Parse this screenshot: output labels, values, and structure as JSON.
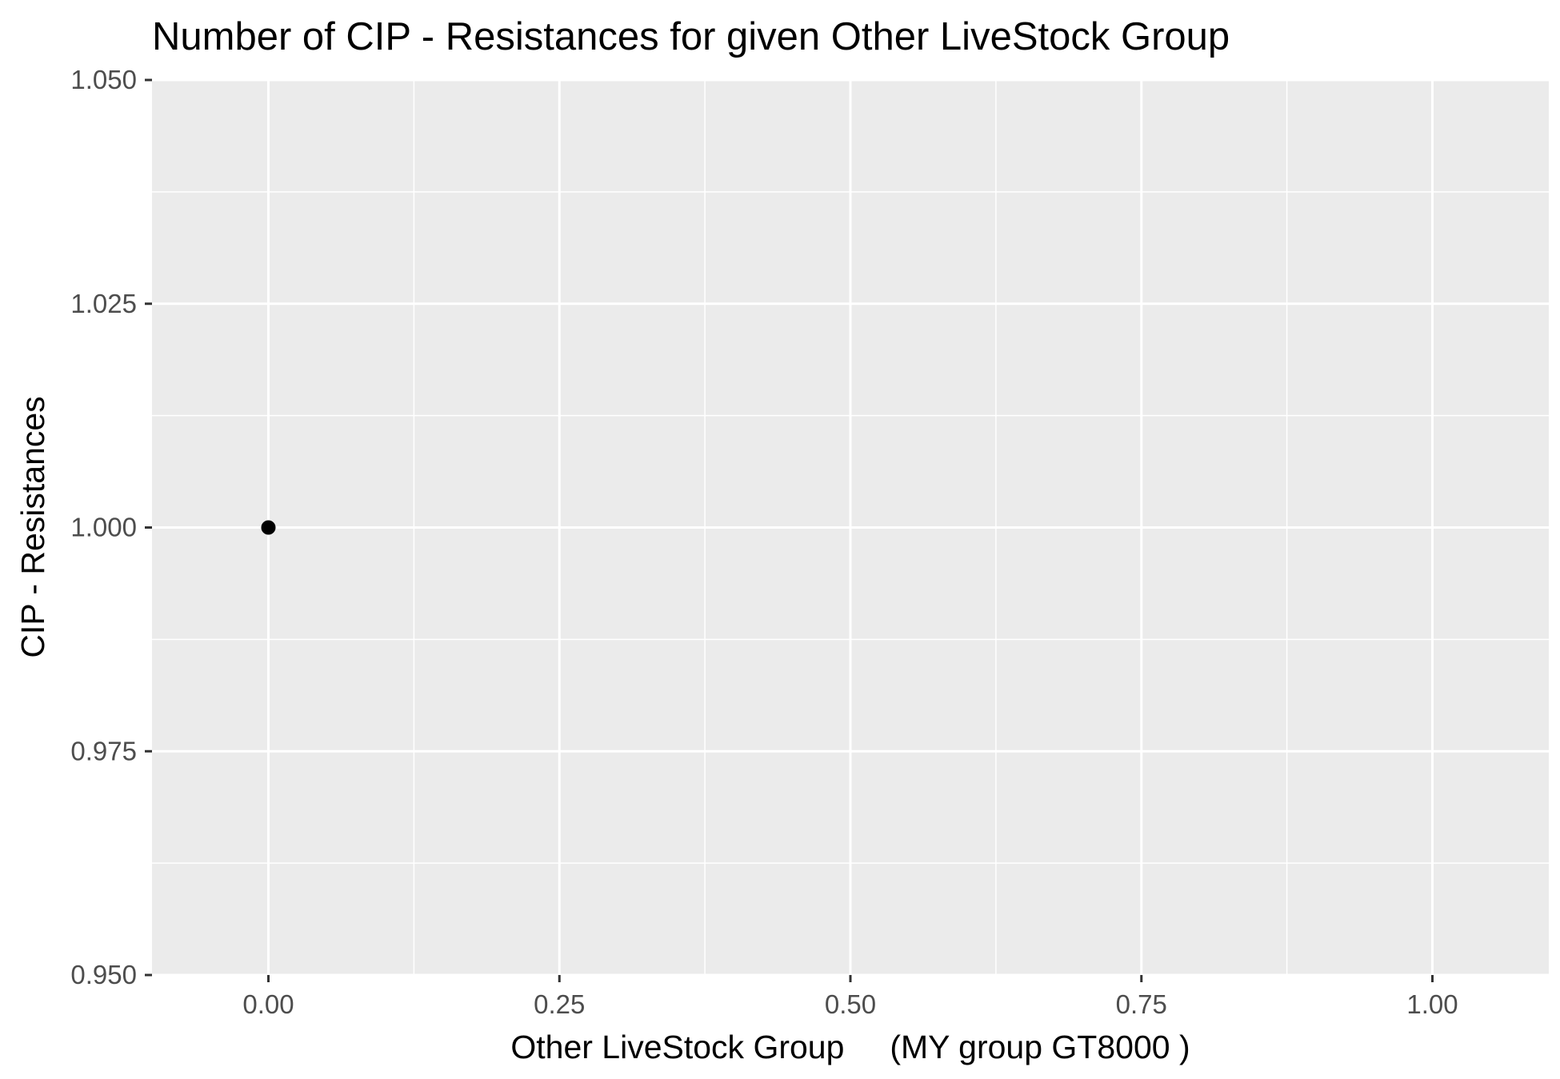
{
  "chart_data": {
    "type": "scatter",
    "title": "Number of CIP - Resistances for given Other LiveStock Group",
    "xlabel": "Other LiveStock Group     (MY group GT8000 )",
    "ylabel": "CIP - Resistances",
    "xlim": [
      -0.1,
      1.1
    ],
    "ylim": [
      0.95,
      1.05
    ],
    "x_ticks": [
      0.0,
      0.25,
      0.5,
      0.75,
      1.0
    ],
    "x_tick_labels": [
      "0.00",
      "0.25",
      "0.50",
      "0.75",
      "1.00"
    ],
    "y_ticks": [
      0.95,
      0.975,
      1.0,
      1.025,
      1.05
    ],
    "y_tick_labels": [
      "0.950",
      "0.975",
      "1.000",
      "1.025",
      "1.050"
    ],
    "grid": true,
    "legend": "none",
    "panel_background": "#ebebeb",
    "grid_color": "#ffffff",
    "point_color": "#000000",
    "series": [
      {
        "points": [
          {
            "x": 0.0,
            "y": 1.0
          }
        ]
      }
    ]
  }
}
